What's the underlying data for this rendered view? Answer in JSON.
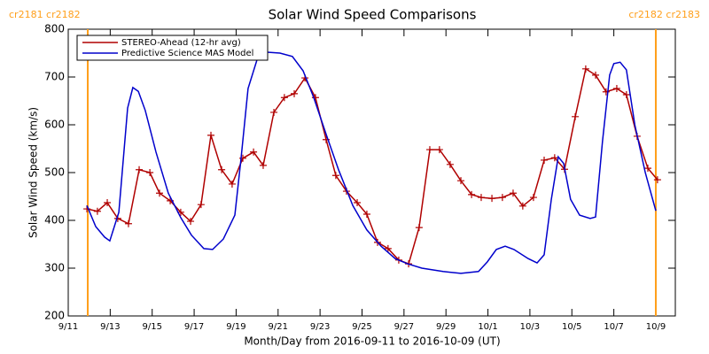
{
  "chart_data": {
    "type": "line",
    "title": "Solar Wind Speed Comparisons",
    "xlabel": "Month/Day from 2016-09-11 to 2016-10-09 (UT)",
    "ylabel": "Solar Wind Speed (km/s)",
    "xlim": [
      0,
      28.93
    ],
    "ylim": [
      200,
      800
    ],
    "xticks": [
      {
        "value": 0,
        "label": "9/11"
      },
      {
        "value": 2,
        "label": "9/13"
      },
      {
        "value": 4,
        "label": "9/15"
      },
      {
        "value": 6,
        "label": "9/17"
      },
      {
        "value": 8,
        "label": "9/19"
      },
      {
        "value": 10,
        "label": "9/21"
      },
      {
        "value": 12,
        "label": "9/23"
      },
      {
        "value": 14,
        "label": "9/25"
      },
      {
        "value": 16,
        "label": "9/27"
      },
      {
        "value": 18,
        "label": "9/29"
      },
      {
        "value": 20,
        "label": "10/1"
      },
      {
        "value": 22,
        "label": "10/3"
      },
      {
        "value": 24,
        "label": "10/5"
      },
      {
        "value": 26,
        "label": "10/7"
      },
      {
        "value": 28,
        "label": "10/9"
      }
    ],
    "yticks": [
      200,
      300,
      400,
      500,
      600,
      700,
      800
    ],
    "legend": "upper left",
    "annotations": [
      {
        "x": 0.93,
        "label": "cr2181 cr2182",
        "color": "#ff9f1a"
      },
      {
        "x": 28.0,
        "label": "cr2182 cr2183",
        "color": "#ff9f1a"
      }
    ],
    "series": [
      {
        "name": "STEREO-Ahead (12-hr avg)",
        "color": "#b00000",
        "marker": "+",
        "x": [
          0.89,
          1.39,
          1.86,
          2.36,
          2.87,
          3.38,
          3.89,
          4.35,
          4.86,
          5.36,
          5.83,
          6.33,
          6.8,
          7.31,
          7.81,
          8.32,
          8.83,
          9.29,
          9.8,
          10.3,
          10.77,
          11.28,
          11.78,
          12.29,
          12.75,
          13.26,
          13.77,
          14.23,
          14.74,
          15.24,
          15.75,
          16.22,
          16.72,
          17.23,
          17.69,
          18.2,
          18.71,
          19.22,
          19.68,
          20.19,
          20.69,
          21.2,
          21.66,
          22.17,
          22.68,
          23.18,
          23.65,
          24.16,
          24.66,
          25.13,
          25.63,
          26.14,
          26.6,
          27.11,
          27.62,
          28.08
        ],
        "values": [
          424,
          419,
          437,
          404,
          393,
          506,
          500,
          457,
          441,
          417,
          398,
          433,
          578,
          506,
          476,
          530,
          543,
          515,
          626,
          657,
          665,
          698,
          657,
          569,
          494,
          461,
          437,
          413,
          354,
          341,
          317,
          309,
          385,
          548,
          548,
          517,
          483,
          454,
          448,
          446,
          448,
          457,
          430,
          448,
          526,
          531,
          507,
          617,
          717,
          704,
          669,
          676,
          663,
          576,
          509,
          485
        ]
      },
      {
        "name": "Predictive Science MAS Model",
        "color": "#0000cc",
        "x": [
          0.89,
          1.31,
          1.73,
          1.98,
          2.41,
          2.83,
          3.08,
          3.34,
          3.67,
          4.18,
          4.77,
          5.36,
          5.87,
          6.46,
          6.88,
          7.39,
          7.94,
          8.23,
          8.57,
          9.08,
          9.42,
          10.09,
          10.68,
          11.19,
          11.7,
          12.29,
          12.88,
          13.56,
          14.23,
          14.91,
          15.58,
          16.17,
          16.85,
          17.86,
          18.71,
          19.55,
          19.97,
          20.4,
          20.82,
          21.24,
          21.92,
          22.34,
          22.68,
          23.02,
          23.35,
          23.61,
          23.94,
          24.37,
          24.87,
          25.13,
          25.46,
          25.8,
          26.0,
          26.3,
          26.6,
          27.0,
          27.5,
          28.0
        ],
        "values": [
          431,
          387,
          365,
          357,
          417,
          635,
          678,
          670,
          630,
          543,
          457,
          406,
          369,
          341,
          339,
          361,
          411,
          528,
          676,
          748,
          752,
          750,
          743,
          713,
          657,
          580,
          506,
          431,
          380,
          346,
          320,
          309,
          300,
          293,
          289,
          293,
          313,
          339,
          346,
          339,
          320,
          311,
          328,
          444,
          533,
          519,
          444,
          411,
          404,
          407,
          565,
          704,
          728,
          731,
          715,
          600,
          500,
          420
        ]
      }
    ]
  }
}
